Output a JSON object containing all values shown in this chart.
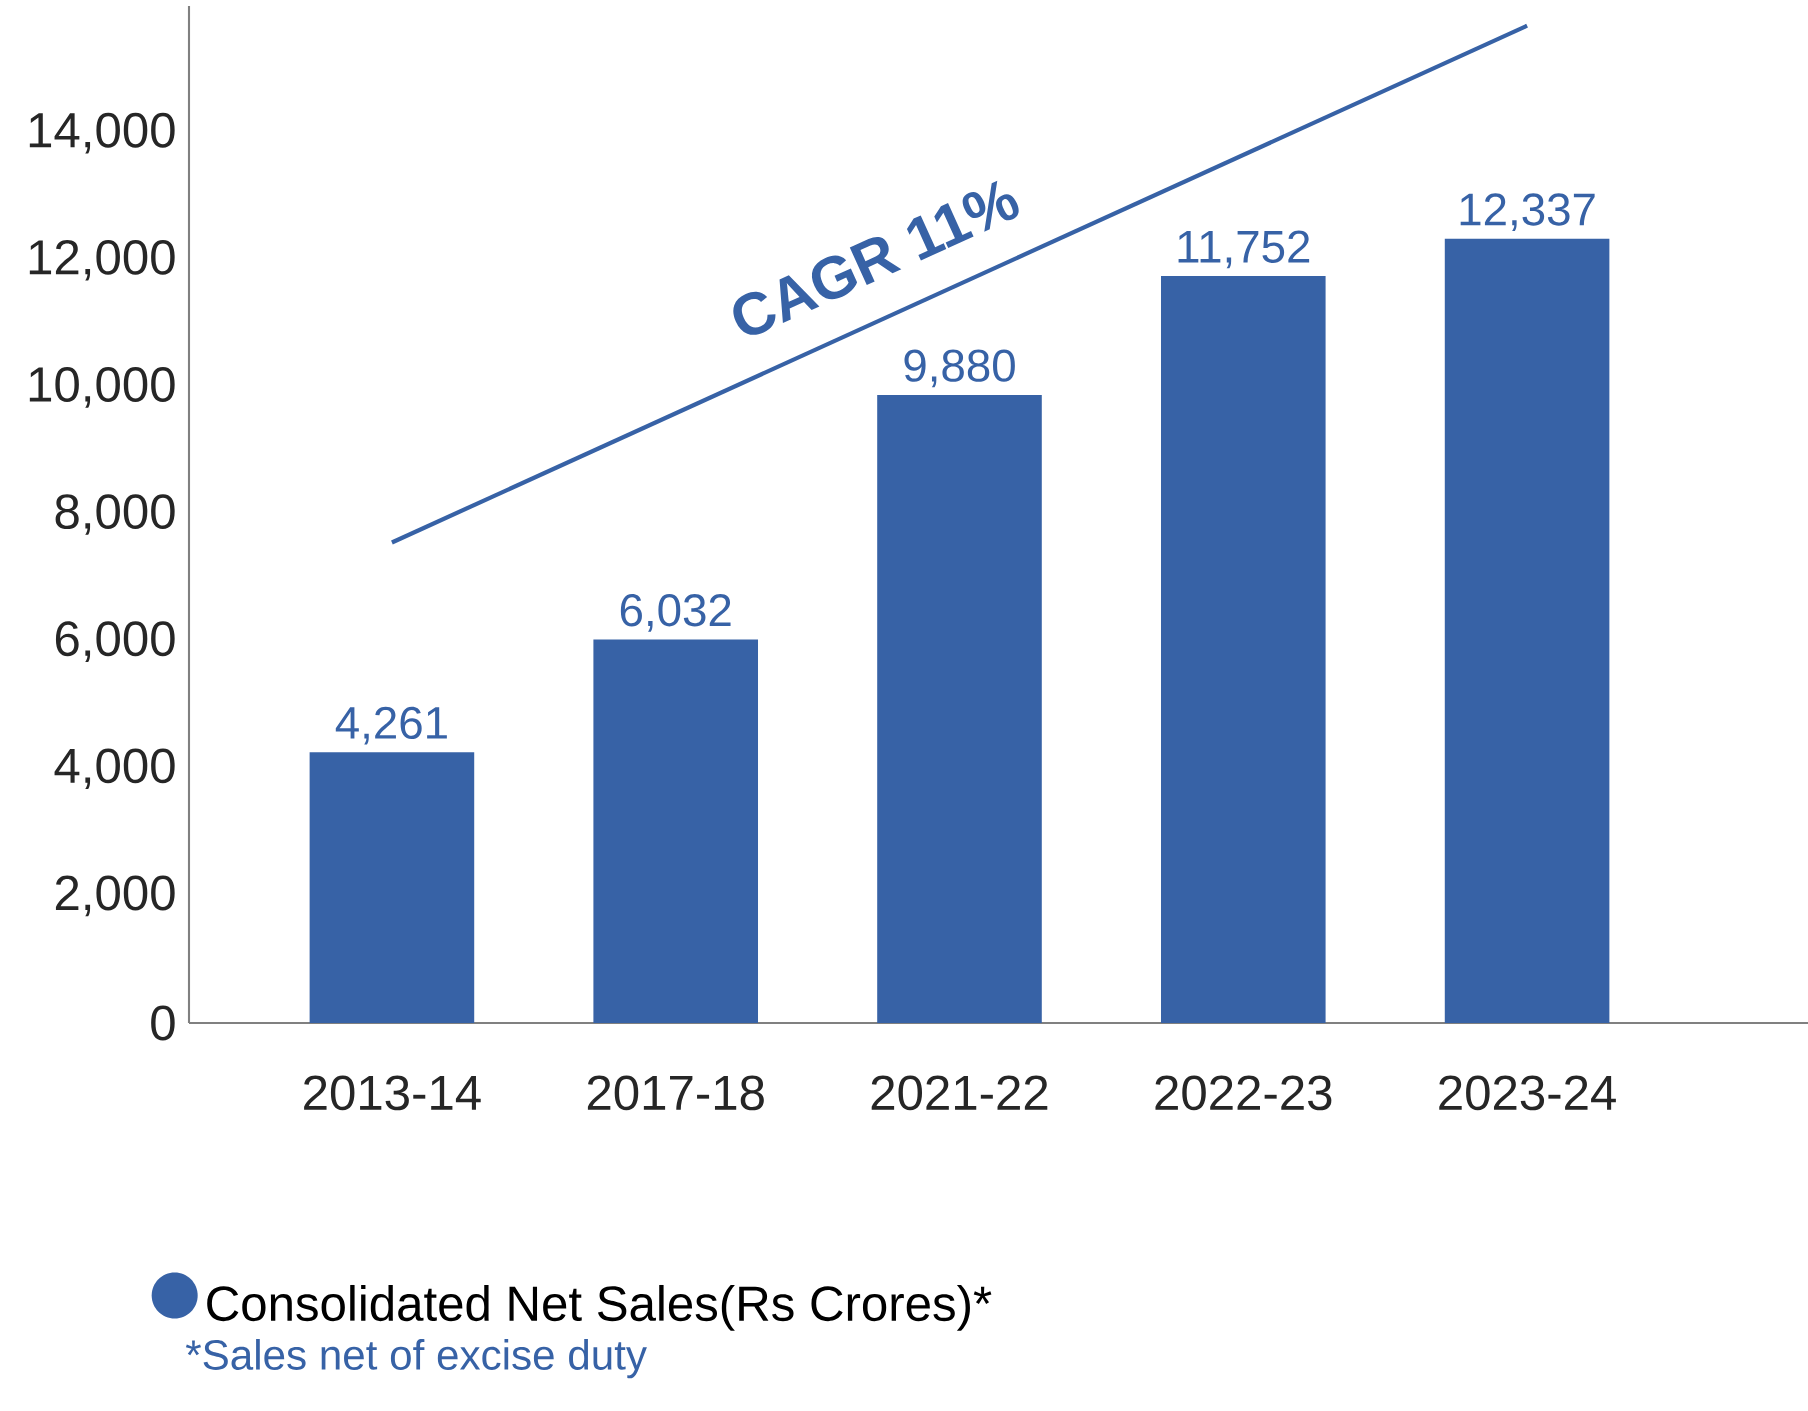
{
  "chart_data": {
    "type": "bar",
    "categories": [
      "2013-14",
      "2017-18",
      "2021-22",
      "2022-23",
      "2023-24"
    ],
    "series": [
      {
        "name": "Consolidated Net Sales(Rs Crores)*",
        "color": "#3762a6",
        "values": [
          4261,
          6032,
          9880,
          11752,
          12337
        ]
      },
      {
        "type": "line",
        "color": "#3762a6",
        "x": [
          "2013-14",
          "2023-24"
        ],
        "values": [
          7560,
          15690
        ]
      }
    ],
    "value_labels": [
      "4,261",
      "6,032",
      "9,880",
      "11,752",
      "12,337"
    ],
    "ylim": [
      0,
      16000
    ],
    "yticks": [
      0,
      {
        "value": 2000,
        "label": "2,000"
      },
      {
        "value": 4000,
        "label": "4,000"
      },
      {
        "value": 6000,
        "label": "6,000"
      },
      {
        "value": 8000,
        "label": "8,000"
      },
      {
        "value": 10000,
        "label": "10,000"
      },
      {
        "value": 12000,
        "label": "12,000"
      },
      {
        "value": 14000,
        "label": "14,000"
      }
    ],
    "annotations": [
      "CAGR 11%",
      "*Sales net of excise duty"
    ],
    "legend": "bottom left"
  }
}
